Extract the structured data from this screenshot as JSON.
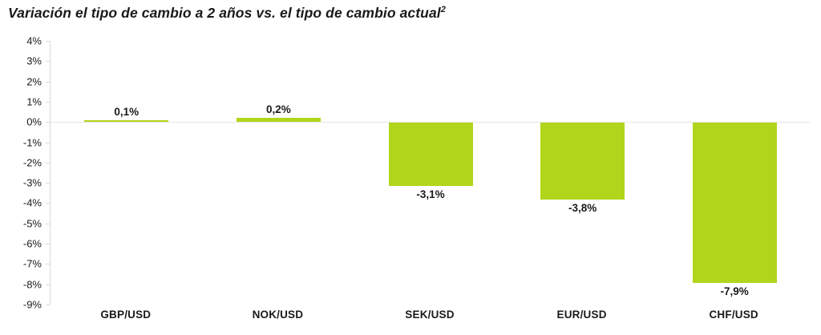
{
  "title": {
    "text": "Variación el tipo de cambio a 2 años vs. el tipo de cambio actual",
    "superscript": "2"
  },
  "chart_data": {
    "type": "bar",
    "title": "Variación el tipo de cambio a 2 años vs. el tipo de cambio actual²",
    "categories": [
      "GBP/USD",
      "NOK/USD",
      "SEK/USD",
      "EUR/USD",
      "CHF/USD"
    ],
    "values": [
      0.1,
      0.2,
      -3.1,
      -3.8,
      -7.9
    ],
    "data_labels": [
      "0,1%",
      "0,2%",
      "-3,1%",
      "-3,8%",
      "-7,9%"
    ],
    "xlabel": "",
    "ylabel": "",
    "ylim": [
      -9,
      4
    ],
    "ytick_step": 1,
    "ytick_labels": [
      "4%",
      "3%",
      "2%",
      "1%",
      "0%",
      "-1%",
      "-2%",
      "-3%",
      "-4%",
      "-5%",
      "-6%",
      "-7%",
      "-8%",
      "-9%"
    ],
    "grid": "zero-line-only",
    "legend_position": "none",
    "bar_color": "#b1d51b",
    "gridline_color": "#e6e6e6",
    "axis_color": "#d9d9d9",
    "text_color": "#1a1a1a"
  }
}
